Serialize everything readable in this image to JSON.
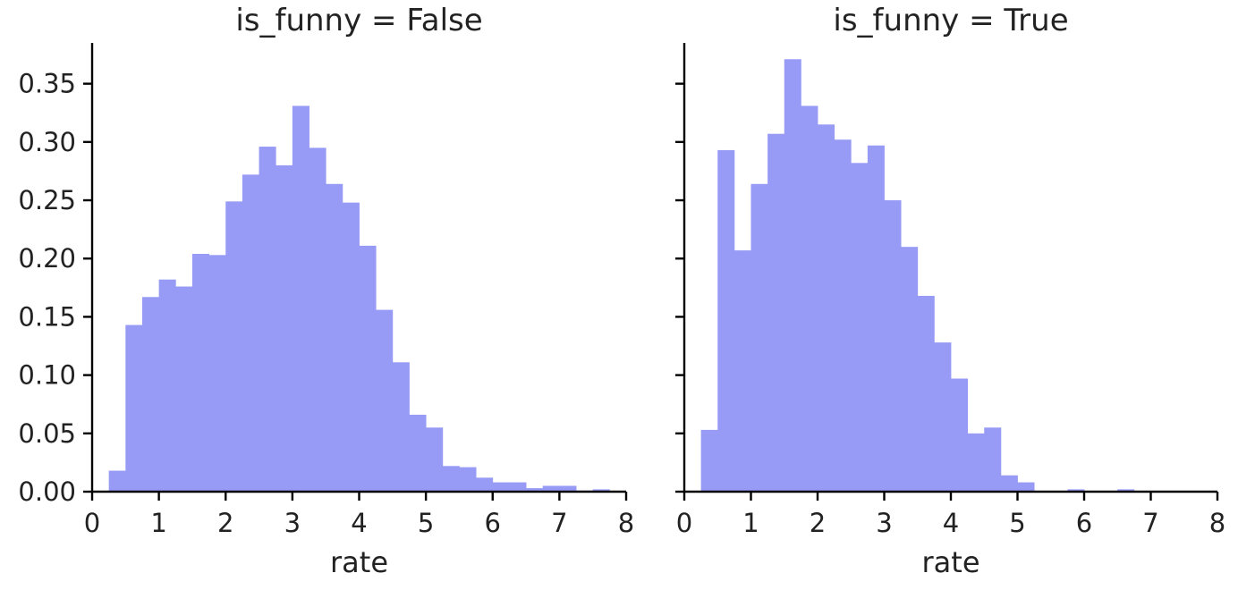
{
  "chart_data": [
    {
      "type": "bar",
      "title": "is_funny = False",
      "xlabel": "rate",
      "ylabel": "",
      "xlim": [
        0,
        8
      ],
      "ylim": [
        0,
        0.385
      ],
      "x_ticks": [
        "0",
        "1",
        "2",
        "3",
        "4",
        "5",
        "6",
        "7",
        "8"
      ],
      "y_ticks": [
        "0.00",
        "0.05",
        "0.10",
        "0.15",
        "0.20",
        "0.25",
        "0.30",
        "0.35"
      ],
      "grid": false,
      "bin_width": 0.25,
      "bin_start": 0.25,
      "values": [
        0.018,
        0.143,
        0.167,
        0.182,
        0.176,
        0.204,
        0.203,
        0.249,
        0.272,
        0.296,
        0.28,
        0.331,
        0.295,
        0.264,
        0.248,
        0.211,
        0.156,
        0.111,
        0.066,
        0.055,
        0.022,
        0.021,
        0.012,
        0.008,
        0.008,
        0.003,
        0.005,
        0.005,
        0.001,
        0.002
      ],
      "color": "#979bf6"
    },
    {
      "type": "bar",
      "title": "is_funny = True",
      "xlabel": "rate",
      "ylabel": "",
      "xlim": [
        0,
        8
      ],
      "ylim": [
        0,
        0.385
      ],
      "x_ticks": [
        "0",
        "1",
        "2",
        "3",
        "4",
        "5",
        "6",
        "7",
        "8"
      ],
      "y_ticks": [
        "0.00",
        "0.05",
        "0.10",
        "0.15",
        "0.20",
        "0.25",
        "0.30",
        "0.35"
      ],
      "grid": false,
      "bin_width": 0.25,
      "bin_start": 0.25,
      "values": [
        0.053,
        0.293,
        0.207,
        0.264,
        0.307,
        0.371,
        0.331,
        0.315,
        0.302,
        0.282,
        0.297,
        0.25,
        0.21,
        0.168,
        0.128,
        0.097,
        0.05,
        0.055,
        0.014,
        0.008,
        0.0,
        0.0,
        0.002,
        0.0,
        0.0,
        0.002,
        0.0,
        0.0,
        0.0,
        0.0
      ],
      "color": "#979bf6"
    }
  ]
}
